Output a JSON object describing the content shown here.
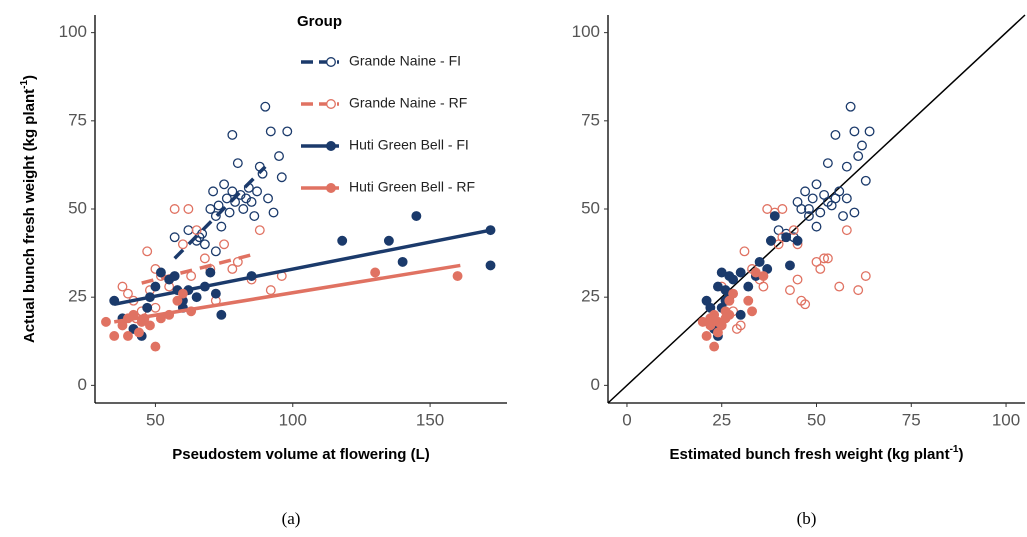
{
  "chart_data": [
    {
      "type": "scatter",
      "xlabel": "Pseudostem volume at flowering (L)",
      "ylabel": {
        "text": "Actual bunch fresh weight (kg plant",
        "sup": "-1",
        "end": ")"
      },
      "panel_label": "(a)",
      "legend_title": "Group",
      "legend": "top-center",
      "xlim": [
        28,
        178
      ],
      "ylim": [
        -5,
        105
      ],
      "xticks": [
        50,
        100,
        150
      ],
      "yticks": [
        0,
        25,
        50,
        75,
        100
      ],
      "series": [
        {
          "name": "Grande Naine - FI",
          "color": "#1b3a6b",
          "filled": false,
          "linestyle": "dashed",
          "x": [
            57,
            62,
            65,
            67,
            68,
            70,
            71,
            72,
            73,
            74,
            75,
            76,
            77,
            78,
            79,
            80,
            81,
            82,
            83,
            84,
            85,
            86,
            87,
            88,
            89,
            90,
            91,
            92,
            93,
            95,
            96,
            98,
            78,
            72,
            66
          ],
          "y": [
            42,
            44,
            41,
            43,
            40,
            50,
            55,
            48,
            51,
            45,
            57,
            53,
            49,
            55,
            52,
            63,
            54,
            50,
            53,
            56,
            52,
            48,
            55,
            62,
            60,
            79,
            53,
            72,
            49,
            65,
            59,
            72,
            71,
            38,
            42
          ],
          "fit": {
            "x": [
              57,
              90
            ],
            "y": [
              36,
              62
            ]
          }
        },
        {
          "name": "Grande Naine - RF",
          "color": "#e07262",
          "filled": false,
          "linestyle": "dashed",
          "x": [
            38,
            40,
            42,
            45,
            47,
            48,
            50,
            52,
            55,
            57,
            60,
            62,
            63,
            65,
            68,
            70,
            72,
            75,
            78,
            80,
            85,
            88,
            92,
            96,
            43,
            50
          ],
          "y": [
            28,
            26,
            24,
            21,
            38,
            27,
            33,
            31,
            28,
            50,
            40,
            50,
            31,
            44,
            36,
            33,
            24,
            40,
            33,
            35,
            30,
            44,
            27,
            31,
            19,
            22
          ],
          "fit": {
            "x": [
              45,
              85
            ],
            "y": [
              29,
              37
            ]
          }
        },
        {
          "name": "Huti Green Bell - FI",
          "color": "#1b3a6b",
          "filled": true,
          "linestyle": "solid",
          "x": [
            35,
            38,
            42,
            45,
            47,
            50,
            52,
            55,
            57,
            58,
            60,
            62,
            65,
            68,
            70,
            72,
            74,
            85,
            118,
            135,
            140,
            145,
            172,
            172,
            60,
            48
          ],
          "y": [
            24,
            19,
            16,
            14,
            22,
            28,
            32,
            30,
            31,
            27,
            24,
            27,
            25,
            28,
            32,
            26,
            20,
            31,
            41,
            41,
            35,
            48,
            34,
            44,
            22,
            25
          ],
          "fit": {
            "x": [
              35,
              172
            ],
            "y": [
              23,
              44
            ]
          }
        },
        {
          "name": "Huti Green Bell - RF",
          "color": "#e07262",
          "filled": true,
          "linestyle": "solid",
          "x": [
            32,
            35,
            38,
            40,
            42,
            44,
            46,
            48,
            50,
            52,
            55,
            58,
            60,
            63,
            130,
            160,
            40,
            45
          ],
          "y": [
            18,
            14,
            17,
            19,
            20,
            15,
            19,
            17,
            11,
            19,
            20,
            24,
            26,
            21,
            32,
            31,
            14,
            18
          ],
          "fit": {
            "x": [
              35,
              161
            ],
            "y": [
              18,
              34
            ]
          }
        }
      ]
    },
    {
      "type": "scatter",
      "xlabel": {
        "text": "Estimated bunch fresh weight (kg plant",
        "sup": "-1",
        "end": ")"
      },
      "panel_label": "(b)",
      "xlim": [
        -5,
        105
      ],
      "ylim": [
        -5,
        105
      ],
      "xticks": [
        0,
        25,
        50,
        75,
        100
      ],
      "yticks": [
        0,
        25,
        50,
        75,
        100
      ],
      "reference_line": {
        "x": [
          -5,
          105
        ],
        "y": [
          -5,
          105
        ]
      },
      "series": [
        {
          "color": "#1b3a6b",
          "filled": false,
          "x": [
            38,
            40,
            42,
            44,
            46,
            47,
            48,
            49,
            50,
            51,
            52,
            53,
            54,
            55,
            55,
            56,
            57,
            58,
            58,
            59,
            60,
            60,
            61,
            62,
            63,
            64,
            45,
            50,
            53,
            48
          ],
          "y": [
            41,
            44,
            43,
            42,
            50,
            55,
            50,
            53,
            57,
            49,
            54,
            52,
            51,
            71,
            53,
            55,
            48,
            62,
            53,
            79,
            72,
            49,
            65,
            68,
            58,
            72,
            52,
            45,
            63,
            48
          ]
        },
        {
          "color": "#e07262",
          "filled": false,
          "x": [
            25,
            27,
            28,
            29,
            30,
            31,
            33,
            35,
            36,
            37,
            39,
            40,
            41,
            43,
            44,
            45,
            46,
            47,
            50,
            51,
            52,
            53,
            56,
            58,
            61,
            63,
            45,
            41
          ],
          "y": [
            28,
            24,
            21,
            16,
            17,
            38,
            33,
            30,
            28,
            50,
            49,
            40,
            42,
            27,
            44,
            30,
            24,
            23,
            35,
            33,
            36,
            36,
            28,
            44,
            27,
            31,
            40,
            50
          ]
        },
        {
          "color": "#1b3a6b",
          "filled": true,
          "x": [
            21,
            22,
            23,
            24,
            24,
            25,
            25,
            26,
            27,
            27,
            28,
            30,
            30,
            32,
            34,
            35,
            37,
            38,
            39,
            42,
            43,
            45,
            22,
            26
          ],
          "y": [
            24,
            19,
            16,
            14,
            28,
            22,
            32,
            27,
            31,
            25,
            30,
            32,
            20,
            28,
            31,
            35,
            33,
            41,
            48,
            42,
            34,
            41,
            22,
            24
          ]
        },
        {
          "color": "#e07262",
          "filled": true,
          "x": [
            20,
            21,
            22,
            22,
            23,
            23,
            24,
            24,
            25,
            26,
            26,
            27,
            27,
            28,
            32,
            34,
            36,
            33
          ],
          "y": [
            18,
            14,
            17,
            19,
            20,
            11,
            15,
            18,
            17,
            19,
            21,
            20,
            24,
            26,
            24,
            32,
            31,
            21
          ]
        }
      ]
    }
  ]
}
